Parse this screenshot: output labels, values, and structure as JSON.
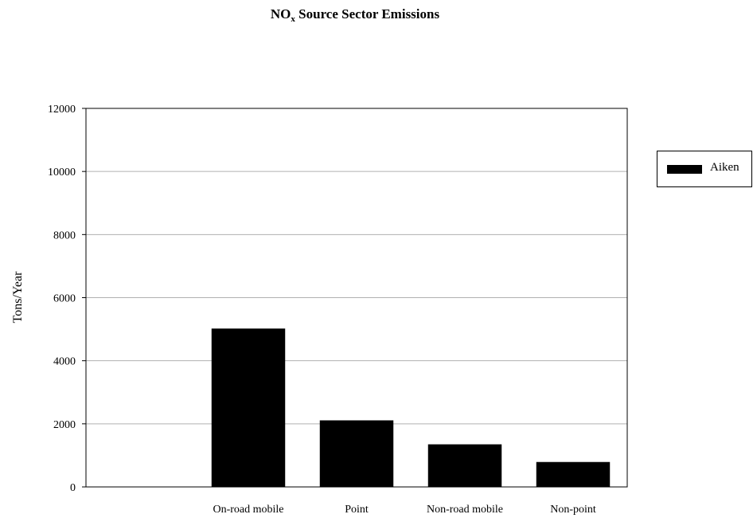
{
  "chart_data": {
    "type": "bar",
    "title_main": "NO",
    "title_sub": "x",
    "title_rest": " Source Sector Emissions",
    "categories": [
      "On-road mobile",
      "Point",
      "Non-road mobile",
      "Non-point"
    ],
    "series": [
      {
        "name": "Aiken",
        "values": [
          5020,
          2110,
          1350,
          790
        ],
        "color": "#000000"
      }
    ],
    "xlabel": "",
    "ylabel": "Tons/Year",
    "ylim": [
      0,
      12000
    ],
    "yticks": [
      0,
      2000,
      4000,
      6000,
      8000,
      10000,
      12000
    ],
    "grid": true,
    "legend_position": "right"
  }
}
